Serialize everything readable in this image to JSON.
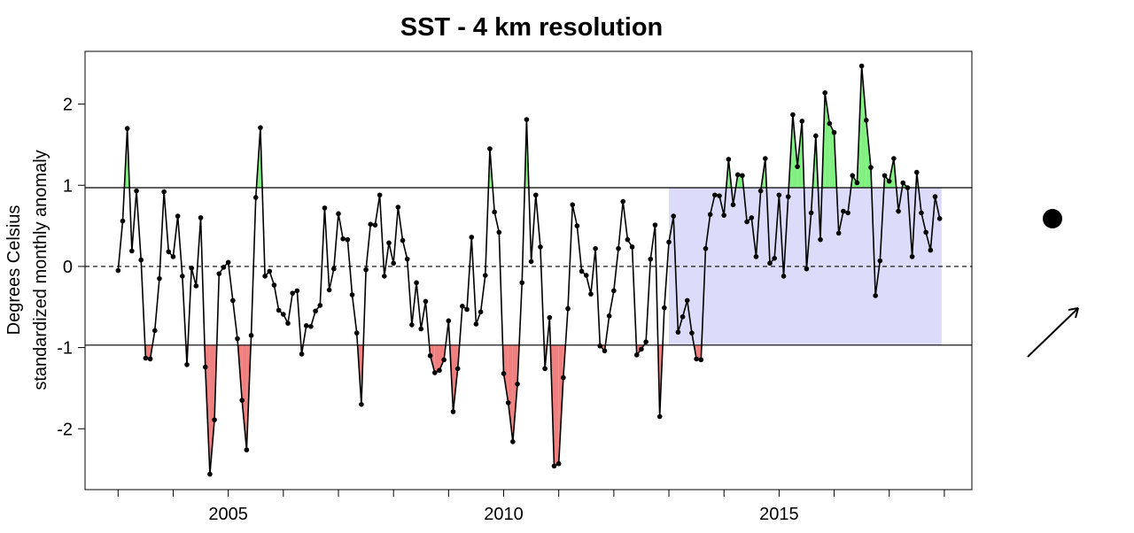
{
  "chart_data": {
    "type": "line",
    "title": "SST - 4 km resolution",
    "ylabel": "Degrees Celsius",
    "ylabel2": "standardized monthly anomaly",
    "xlabel": "",
    "ylim": [
      -2.75,
      2.65
    ],
    "xlim": [
      2002.4,
      2018.5
    ],
    "y_ticks": [
      -2,
      -1,
      0,
      1,
      2
    ],
    "y_tick_labels": [
      "-2",
      "-1",
      "0",
      "1",
      "2"
    ],
    "x_ticks": [
      2005,
      2010,
      2015
    ],
    "x_tick_labels": [
      "2005",
      "2010",
      "2015"
    ],
    "x_minor_ticks": [
      2003,
      2004,
      2006,
      2007,
      2008,
      2009,
      2011,
      2012,
      2013,
      2014,
      2016,
      2017,
      2018
    ],
    "reference_lines": [
      0.97,
      -0.97
    ],
    "zero_line": 0,
    "highlight_region": {
      "x": [
        2013.0,
        2017.95
      ],
      "y": [
        -0.97,
        0.97
      ],
      "color": "#dcdcfa"
    },
    "colors": {
      "above": "#80f080",
      "below": "#f08080",
      "line": "#000000"
    },
    "series": [
      {
        "x_start": 2003.0,
        "x_step": 0.08333,
        "values": [
          -0.05,
          0.56,
          1.7,
          0.19,
          0.93,
          0.08,
          -1.13,
          -1.14,
          -0.79,
          -0.15,
          0.92,
          0.18,
          0.12,
          0.62,
          -0.12,
          -1.21,
          -0.02,
          -0.24,
          0.6,
          -1.24,
          -2.56,
          -1.89,
          -0.09,
          -0.01,
          0.05,
          -0.42,
          -0.89,
          -1.65,
          -2.26,
          -0.85,
          0.85,
          1.71,
          -0.12,
          -0.06,
          -0.23,
          -0.54,
          -0.59,
          -0.7,
          -0.33,
          -0.3,
          -1.08,
          -0.73,
          -0.74,
          -0.55,
          -0.48,
          0.72,
          -0.29,
          -0.03,
          0.65,
          0.34,
          0.33,
          -0.35,
          -0.82,
          -1.7,
          -0.04,
          0.52,
          0.51,
          0.88,
          -0.12,
          0.29,
          0.04,
          0.73,
          0.32,
          0.09,
          -0.72,
          -0.2,
          -0.77,
          -0.43,
          -1.1,
          -1.31,
          -1.28,
          -1.15,
          -0.67,
          -1.79,
          -1.26,
          -0.49,
          -0.53,
          0.36,
          -0.71,
          -0.56,
          -0.11,
          1.45,
          0.67,
          0.42,
          -1.32,
          -1.68,
          -2.16,
          -1.45,
          -0.2,
          1.81,
          0.06,
          0.88,
          0.24,
          -1.26,
          -0.63,
          -2.46,
          -2.43,
          -1.37,
          -0.52,
          0.76,
          0.5,
          -0.06,
          -0.11,
          -0.34,
          0.22,
          -0.98,
          -1.04,
          -0.61,
          -0.3,
          0.22,
          0.8,
          0.33,
          0.24,
          -1.09,
          -1.02,
          -0.93,
          0.09,
          0.51,
          -1.85,
          -0.51,
          0.3,
          0.62,
          -0.81,
          -0.62,
          -0.42,
          -0.82,
          -1.14,
          -1.15,
          0.22,
          0.64,
          0.88,
          0.87,
          0.63,
          1.32,
          0.76,
          1.13,
          1.12,
          0.55,
          0.6,
          0.12,
          0.93,
          1.33,
          0.04,
          0.1,
          0.88,
          -0.12,
          0.86,
          1.87,
          1.23,
          1.79,
          -0.03,
          0.66,
          1.61,
          0.33,
          2.14,
          1.76,
          1.65,
          0.41,
          0.68,
          0.66,
          1.12,
          1.03,
          2.47,
          1.8,
          1.22,
          -0.36,
          0.07,
          1.12,
          1.05,
          1.33,
          0.68,
          1.03,
          0.97,
          0.12,
          1.16,
          0.66,
          0.42,
          0.2,
          0.86,
          0.59
        ]
      }
    ]
  }
}
